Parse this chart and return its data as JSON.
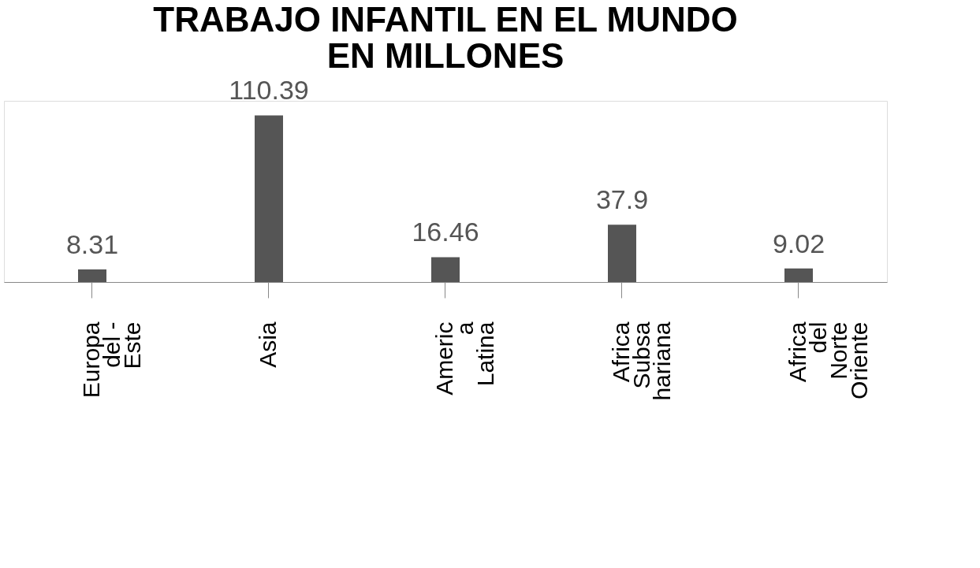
{
  "chart_data": {
    "type": "bar",
    "title": "TRABAJO INFANTIL EN EL MUNDO\nEN MILLONES",
    "categories": [
      "Europa\ndel -\nEste",
      "Asia",
      "Americ\na\nLatina",
      "Africa\nSubsa\nhariana",
      "Africa\ndel\nNorte\nOriente"
    ],
    "values": [
      8.31,
      110.39,
      16.46,
      37.9,
      9.02
    ],
    "color": "#555555",
    "data_labels": true,
    "grid": false
  }
}
